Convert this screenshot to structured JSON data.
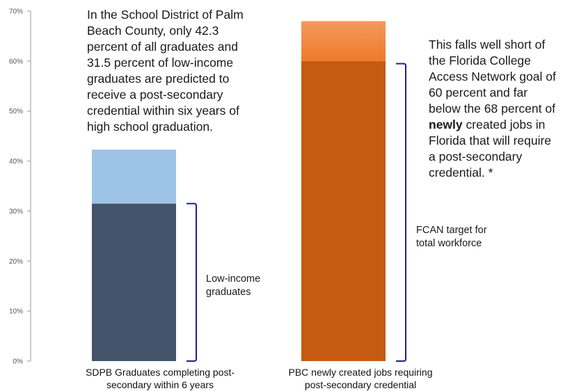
{
  "chart_data": {
    "type": "bar",
    "ylim": [
      0,
      70
    ],
    "yticks": [
      0,
      10,
      20,
      30,
      40,
      50,
      60,
      70
    ],
    "ytick_labels": [
      "0%",
      "10%",
      "20%",
      "30%",
      "40%",
      "50%",
      "60%",
      "70%"
    ],
    "grid": false,
    "categories": [
      "SDPB Graduates completing post-secondary within 6 years",
      "PBC newly created  jobs requiring post-secondary credential"
    ],
    "category_label_lines": [
      [
        "SDPB Graduates completing post-",
        "secondary within 6 years"
      ],
      [
        "PBC newly created  jobs requiring",
        "post-secondary credential"
      ]
    ],
    "bars": [
      {
        "category": 0,
        "segments": [
          {
            "value": 31.5,
            "color": "#44546a"
          },
          {
            "value": 10.8,
            "color": "#9dc3e6"
          }
        ]
      },
      {
        "category": 1,
        "segments": [
          {
            "value": 60,
            "color": "#c55a11"
          },
          {
            "value": 8,
            "color": "#ed7d31",
            "gradient_top": "#f4a26e"
          }
        ]
      }
    ],
    "brackets": [
      {
        "category": 0,
        "from": 0,
        "to": 31.5,
        "color": "#1f1f8f"
      },
      {
        "category": 1,
        "from": 0,
        "to": 59.5,
        "color": "#1f1f8f"
      }
    ]
  },
  "annotations": {
    "main_text_lines": [
      "In the School District of Palm",
      "Beach County, only 42.3",
      "percent of all graduates and",
      "31.5 percent of low-income",
      "graduates are predicted to",
      "receive a post-secondary",
      "credential within six years of",
      "high school graduation."
    ],
    "right_text": {
      "line1": "This falls well short of",
      "line2": "the Florida College",
      "line3": "Access Network goal of",
      "line4": "60 percent and far",
      "line5": "below the 68 percent of",
      "line6_bold": "newly",
      "line6_rest": " created jobs in",
      "line7": "Florida that will require",
      "line8": "a post-secondary",
      "line9": "credential. *"
    },
    "low_income_lines": [
      "Low-income",
      "graduates"
    ],
    "fcan_lines": [
      "FCAN target for",
      "total workforce"
    ]
  }
}
